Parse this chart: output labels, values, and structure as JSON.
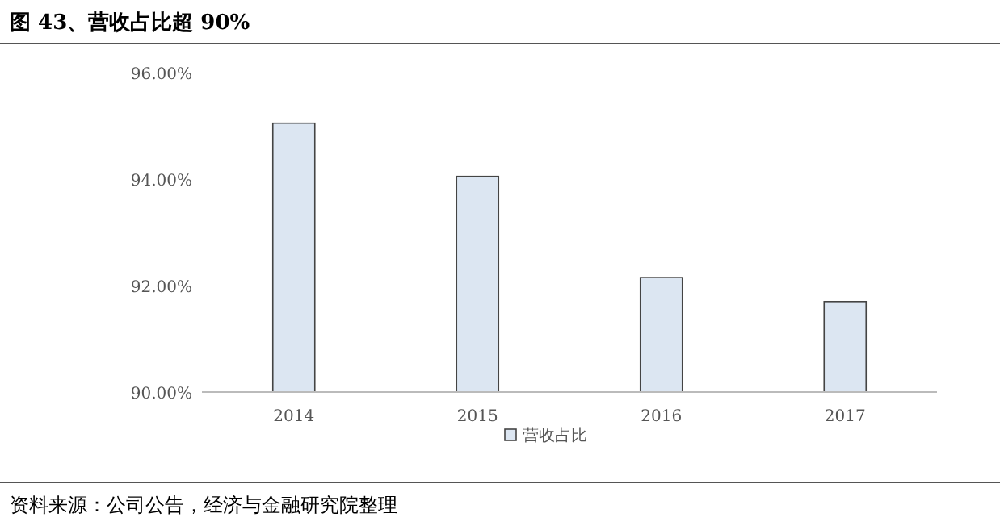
{
  "chart_data": {
    "type": "bar",
    "title": "图 43、营收占比超 90%",
    "categories": [
      "2014",
      "2015",
      "2016",
      "2017"
    ],
    "series": [
      {
        "name": "营收占比",
        "color": "#dce6f2",
        "values": [
          95.05,
          94.05,
          92.15,
          91.7
        ]
      }
    ],
    "ylim": [
      90,
      96
    ],
    "yticks": [
      {
        "value": 90,
        "label": "90.00%"
      },
      {
        "value": 92,
        "label": "92.00%"
      },
      {
        "value": 94,
        "label": "94.00%"
      },
      {
        "value": 96,
        "label": "96.00%"
      }
    ],
    "grid": false,
    "legend": "bottom",
    "annotations": [
      "资料来源：公司公告，经济与金融研究院整理"
    ]
  }
}
